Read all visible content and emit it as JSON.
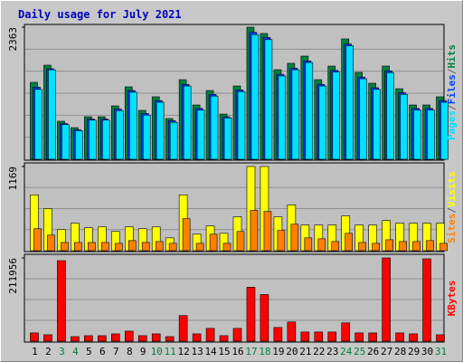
{
  "chart_data": [
    {
      "type": "bar",
      "title": "Daily usage for July 2021",
      "ylim": [
        0,
        2363
      ],
      "yticks": [
        2363
      ],
      "grid": true,
      "legend_separator": "/",
      "series": [
        {
          "name": "Hits",
          "color": "#008040",
          "values": [
            1376,
            1683,
            680,
            566,
            761,
            761,
            955,
            1295,
            874,
            1117,
            728,
            1424,
            971,
            1230,
            809,
            1311,
            2363,
            2250,
            1602,
            1716,
            1845,
            1424,
            1667,
            2153,
            1554,
            1360,
            1667,
            1262,
            971,
            971,
            1117
          ]
        },
        {
          "name": "Files",
          "color": "#0040ff",
          "values": [
            1290,
            1620,
            640,
            530,
            720,
            720,
            900,
            1230,
            820,
            1050,
            690,
            1340,
            910,
            1160,
            760,
            1240,
            2270,
            2180,
            1520,
            1630,
            1760,
            1340,
            1590,
            2060,
            1470,
            1280,
            1580,
            1190,
            910,
            910,
            1050
          ]
        },
        {
          "name": "Pages",
          "color": "#00e0ff",
          "values": [
            1250,
            1600,
            620,
            510,
            700,
            700,
            870,
            1200,
            790,
            1020,
            660,
            1310,
            880,
            1130,
            740,
            1210,
            2230,
            2140,
            1490,
            1600,
            1730,
            1310,
            1560,
            2030,
            1440,
            1250,
            1550,
            1160,
            880,
            880,
            1020
          ]
        }
      ]
    },
    {
      "type": "bar",
      "ylim": [
        0,
        1169
      ],
      "yticks": [
        1169
      ],
      "grid": true,
      "legend_separator": "/",
      "series": [
        {
          "name": "Visits",
          "color": "#ffff00",
          "values": [
            775,
            584,
            292,
            381,
            318,
            330,
            267,
            330,
            305,
            330,
            178,
            775,
            229,
            343,
            241,
            470,
            1169,
            1169,
            470,
            635,
            356,
            356,
            356,
            483,
            356,
            356,
            419,
            381,
            381,
            381,
            381
          ]
        },
        {
          "name": "Sites",
          "color": "#ff8000",
          "values": [
            305,
            216,
            114,
            114,
            114,
            114,
            102,
            140,
            114,
            127,
            102,
            445,
            102,
            229,
            102,
            267,
            559,
            546,
            280,
            368,
            178,
            165,
            127,
            241,
            114,
            102,
            152,
            127,
            127,
            140,
            102
          ]
        }
      ]
    },
    {
      "type": "bar",
      "ylim": [
        0,
        211956
      ],
      "yticks": [
        211956
      ],
      "grid": true,
      "categories": [
        1,
        2,
        3,
        4,
        5,
        6,
        7,
        8,
        9,
        10,
        11,
        12,
        13,
        14,
        15,
        16,
        17,
        18,
        19,
        20,
        21,
        22,
        23,
        24,
        25,
        26,
        27,
        28,
        29,
        30,
        31
      ],
      "highlighted": [
        3,
        4,
        10,
        11,
        17,
        18,
        24,
        25,
        31
      ],
      "highlight_color": "#008040",
      "category_color": "#000000",
      "series": [
        {
          "name": "KBytes",
          "color": "#ff0000",
          "values": [
            21000,
            16300,
            205000,
            11600,
            14000,
            14000,
            18600,
            25600,
            14000,
            18600,
            11600,
            65200,
            18600,
            32600,
            14000,
            32600,
            137400,
            118800,
            34900,
            48900,
            23300,
            23300,
            23300,
            46600,
            21000,
            21000,
            211956,
            21000,
            18600,
            209600,
            16300
          ]
        }
      ]
    }
  ]
}
